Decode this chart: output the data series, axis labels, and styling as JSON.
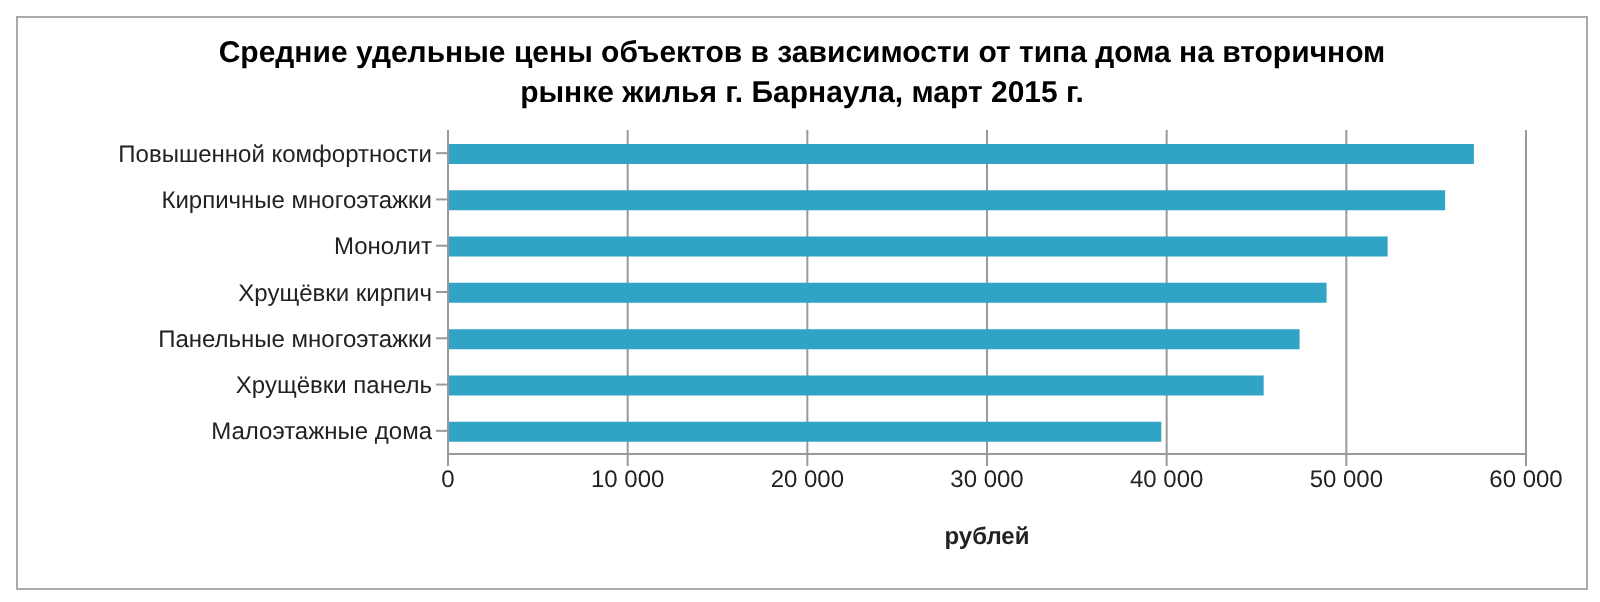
{
  "chart_data": {
    "type": "bar",
    "orientation": "horizontal",
    "title": "Средние удельные цены объектов в зависимости от типа дома на вторичном рынке жилья г. Барнаула, март 2015 г.",
    "xlabel": "рублей",
    "categories": [
      "Повышенной комфортности",
      "Кирпичные многоэтажки",
      "Монолит",
      "Хрущёвки кирпич",
      "Панельные многоэтажки",
      "Хрущёвки панель",
      "Малоэтажные дома"
    ],
    "values": [
      57100,
      55500,
      52300,
      48900,
      47400,
      45400,
      39700
    ],
    "color": "#31a3c4",
    "xlim": [
      0,
      60000
    ],
    "xticks": [
      {
        "value": 0,
        "label": "0"
      },
      {
        "value": 10000,
        "label": "10 000"
      },
      {
        "value": 20000,
        "label": "20 000"
      },
      {
        "value": 30000,
        "label": "30 000"
      },
      {
        "value": 40000,
        "label": "40 000"
      },
      {
        "value": 50000,
        "label": "50 000"
      },
      {
        "value": 60000,
        "label": "60 000"
      }
    ],
    "grid": "x",
    "legend": false
  }
}
